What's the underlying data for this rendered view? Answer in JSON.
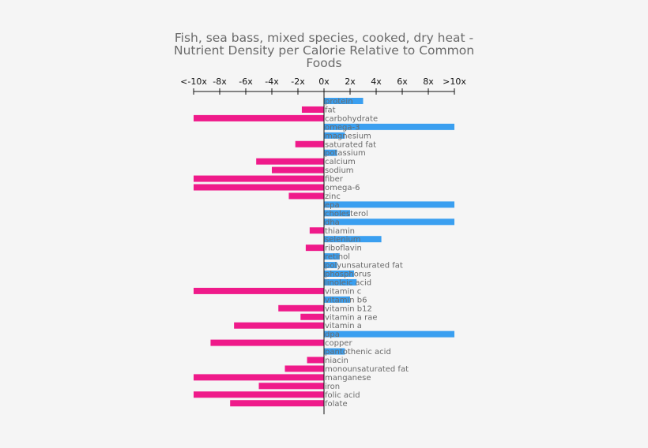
{
  "chart_data": {
    "type": "bar",
    "orientation": "horizontal",
    "title": "Fish, sea bass, mixed species, cooked, dry heat - Nutrient Density per Calorie Relative to Common Foods",
    "xlim": [
      -10,
      10
    ],
    "grid": false,
    "ticks": [
      {
        "value": -10,
        "label": "<-10x"
      },
      {
        "value": -8,
        "label": "-8x"
      },
      {
        "value": -6,
        "label": "-6x"
      },
      {
        "value": -4,
        "label": "-4x"
      },
      {
        "value": -2,
        "label": "-2x"
      },
      {
        "value": 0,
        "label": "0x"
      },
      {
        "value": 2,
        "label": "2x"
      },
      {
        "value": 4,
        "label": "4x"
      },
      {
        "value": 6,
        "label": "6x"
      },
      {
        "value": 8,
        "label": "8x"
      },
      {
        "value": 10,
        "label": ">10x"
      }
    ],
    "colors": {
      "positive": "#3a9ff0",
      "negative": "#ef1a8a"
    },
    "categories": [
      "protein",
      "fat",
      "carbohydrate",
      "omega-3",
      "magnesium",
      "saturated fat",
      "potassium",
      "calcium",
      "sodium",
      "fiber",
      "omega-6",
      "zinc",
      "epa",
      "cholesterol",
      "dha",
      "thiamin",
      "selenium",
      "riboflavin",
      "retinol",
      "polyunsaturated fat",
      "phosphorus",
      "linoleic acid",
      "vitamin c",
      "vitamin b6",
      "vitamin b12",
      "vitamin a rae",
      "vitamin a",
      "dpa",
      "copper",
      "pantothenic acid",
      "niacin",
      "monounsaturated fat",
      "manganese",
      "iron",
      "folic acid",
      "folate"
    ],
    "values": [
      3.0,
      -1.7,
      -10,
      10,
      1.6,
      -2.2,
      1.0,
      -5.2,
      -4.0,
      -10,
      -10,
      -2.7,
      10,
      2.0,
      10,
      -1.1,
      4.4,
      -1.4,
      1.2,
      1.0,
      2.3,
      2.5,
      -10,
      2.0,
      -3.5,
      -1.8,
      -6.9,
      10,
      -8.7,
      1.6,
      -1.3,
      -3.0,
      -10,
      -5.0,
      -10,
      -7.2
    ]
  }
}
